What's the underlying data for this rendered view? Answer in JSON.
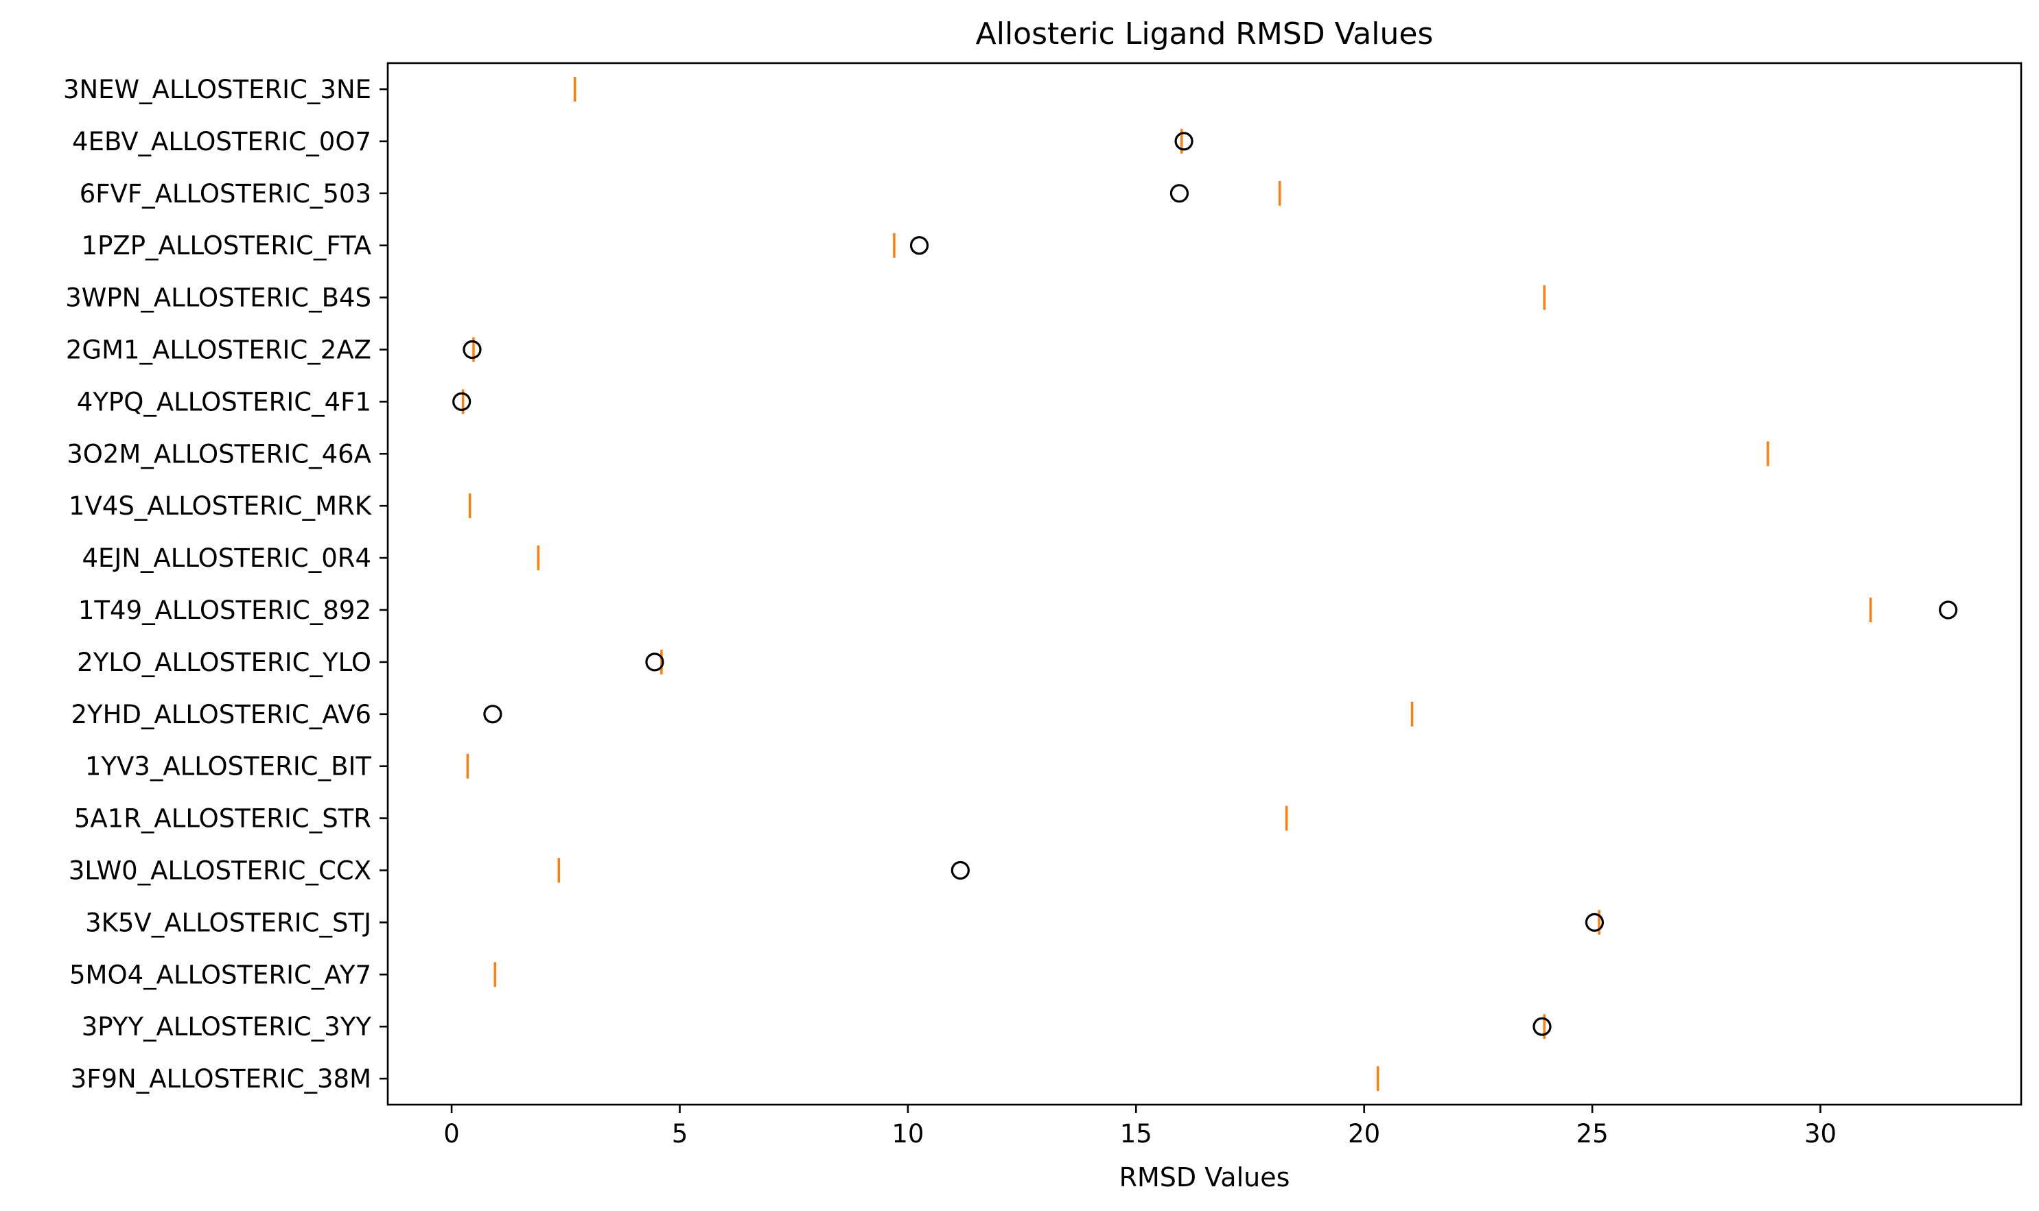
{
  "chart_data": {
    "type": "boxplot-horizontal",
    "title": "Allosteric Ligand RMSD Values",
    "xlabel": "RMSD Values",
    "ylabel": "",
    "xlim": [
      -1.4,
      34.4
    ],
    "xticks": [
      0,
      5,
      10,
      15,
      20,
      25,
      30
    ],
    "grid": false,
    "colors": {
      "median": "#ff7f0e",
      "outlier_edge": "#000000",
      "axes": "#000000"
    },
    "series": [
      {
        "name": "3NEW_ALLOSTERIC_3NE",
        "median": 2.7,
        "outliers": []
      },
      {
        "name": "4EBV_ALLOSTERIC_0O7",
        "median": 16.0,
        "outliers": [
          16.05
        ]
      },
      {
        "name": "6FVF_ALLOSTERIC_503",
        "median": 18.15,
        "outliers": [
          15.95
        ]
      },
      {
        "name": "1PZP_ALLOSTERIC_FTA",
        "median": 9.7,
        "outliers": [
          10.25
        ]
      },
      {
        "name": "3WPN_ALLOSTERIC_B4S",
        "median": 23.95,
        "outliers": []
      },
      {
        "name": "2GM1_ALLOSTERIC_2AZ",
        "median": 0.48,
        "outliers": [
          0.45
        ]
      },
      {
        "name": "4YPQ_ALLOSTERIC_4F1",
        "median": 0.25,
        "outliers": [
          0.22
        ]
      },
      {
        "name": "3O2M_ALLOSTERIC_46A",
        "median": 28.85,
        "outliers": []
      },
      {
        "name": "1V4S_ALLOSTERIC_MRK",
        "median": 0.4,
        "outliers": []
      },
      {
        "name": "4EJN_ALLOSTERIC_0R4",
        "median": 1.9,
        "outliers": []
      },
      {
        "name": "1T49_ALLOSTERIC_892",
        "median": 31.1,
        "outliers": [
          32.8
        ]
      },
      {
        "name": "2YLO_ALLOSTERIC_YLO",
        "median": 4.6,
        "outliers": [
          4.45
        ]
      },
      {
        "name": "2YHD_ALLOSTERIC_AV6",
        "median": 21.05,
        "outliers": [
          0.9
        ]
      },
      {
        "name": "1YV3_ALLOSTERIC_BIT",
        "median": 0.35,
        "outliers": []
      },
      {
        "name": "5A1R_ALLOSTERIC_STR",
        "median": 18.3,
        "outliers": []
      },
      {
        "name": "3LW0_ALLOSTERIC_CCX",
        "median": 2.35,
        "outliers": [
          11.15
        ]
      },
      {
        "name": "3K5V_ALLOSTERIC_STJ",
        "median": 25.15,
        "outliers": [
          25.05
        ]
      },
      {
        "name": "5MO4_ALLOSTERIC_AY7",
        "median": 0.95,
        "outliers": []
      },
      {
        "name": "3PYY_ALLOSTERIC_3YY",
        "median": 23.95,
        "outliers": [
          23.9
        ]
      },
      {
        "name": "3F9N_ALLOSTERIC_38M",
        "median": 20.3,
        "outliers": []
      }
    ]
  }
}
